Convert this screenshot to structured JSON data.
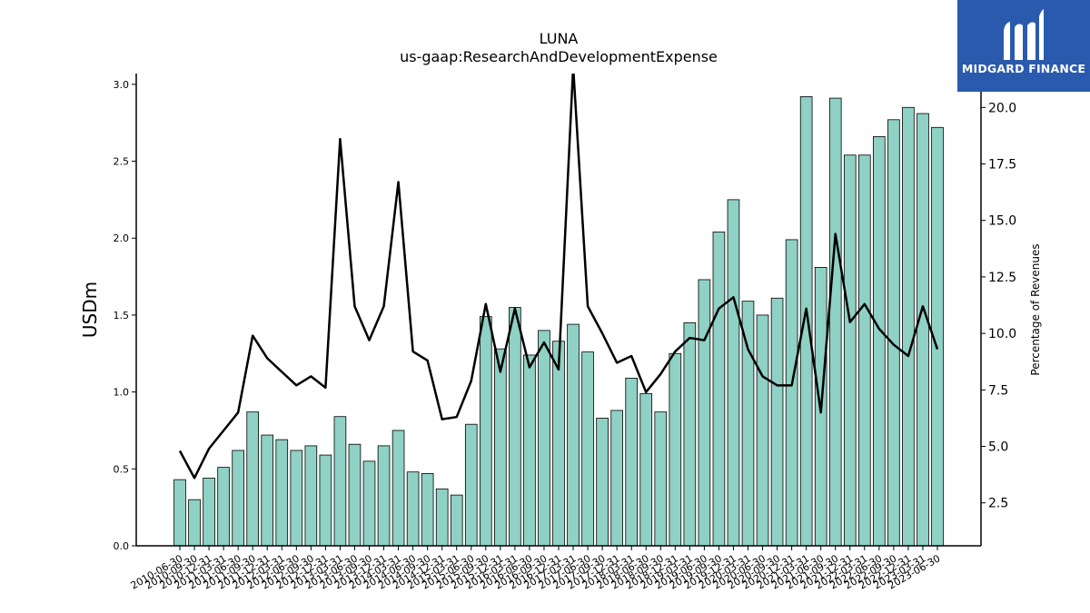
{
  "brand": {
    "name": "MIDGARD FINANCE",
    "logo_icon": "midgard-m-logo-icon",
    "background": "#2a5aad"
  },
  "chart_data": {
    "type": "bar",
    "title": "LUNA",
    "subtitle": "us-gaap:ResearchAndDevelopmentExpense",
    "ylabel": "USDm",
    "ylabel_right": "Percentage of Revenues",
    "ylim": [
      0,
      3.07
    ],
    "ylim_right": [
      0.6,
      21.5
    ],
    "yticks": [
      0.0,
      0.5,
      1.0,
      1.5,
      2.0,
      2.5,
      3.0
    ],
    "yticks_right": [
      2.5,
      5.0,
      7.5,
      10.0,
      12.5,
      15.0,
      17.5,
      20.0
    ],
    "bar_color": "#8fd1c4",
    "line_color": "#000000",
    "grid": false,
    "categories": [
      "2010-06-30",
      "2010-09-30",
      "2010-12-31",
      "2011-03-31",
      "2011-06-30",
      "2011-09-30",
      "2011-12-31",
      "2012-03-31",
      "2012-06-30",
      "2012-09-30",
      "2012-12-31",
      "2013-03-31",
      "2013-06-30",
      "2013-09-30",
      "2013-12-31",
      "2014-03-31",
      "2014-06-30",
      "2014-09-30",
      "2014-12-31",
      "2015-03-31",
      "2015-06-30",
      "2015-09-30",
      "2015-12-31",
      "2016-03-31",
      "2016-06-30",
      "2016-09-30",
      "2016-12-31",
      "2017-03-31",
      "2017-06-30",
      "2017-09-30",
      "2017-12-31",
      "2018-03-31",
      "2018-06-30",
      "2018-09-30",
      "2018-12-31",
      "2019-03-31",
      "2019-06-30",
      "2019-09-30",
      "2019-12-31",
      "2020-03-31",
      "2020-06-30",
      "2020-09-30",
      "2020-12-31",
      "2021-03-31",
      "2021-06-30",
      "2021-09-30",
      "2021-12-31",
      "2022-03-31",
      "2022-06-30",
      "2022-09-30",
      "2022-12-31",
      "2023-03-31",
      "2023-06-30"
    ],
    "series": [
      {
        "type": "bar",
        "axis": "left",
        "values": [
          0.43,
          0.3,
          0.44,
          0.51,
          0.62,
          0.87,
          0.72,
          0.69,
          0.62,
          0.65,
          0.59,
          0.84,
          0.66,
          0.55,
          0.65,
          0.75,
          0.48,
          0.47,
          0.37,
          0.33,
          0.79,
          1.49,
          1.28,
          1.55,
          1.24,
          1.4,
          1.33,
          1.44,
          1.26,
          0.83,
          0.88,
          1.09,
          0.99,
          0.87,
          1.25,
          1.45,
          1.73,
          2.04,
          2.25,
          1.59,
          1.5,
          1.61,
          1.99,
          2.92,
          1.81,
          2.91,
          2.54,
          2.54,
          2.66,
          2.77,
          2.85,
          2.81,
          2.72
        ]
      },
      {
        "type": "line",
        "axis": "right",
        "values": [
          4.8,
          3.6,
          4.9,
          5.7,
          6.5,
          9.9,
          8.9,
          8.3,
          7.7,
          8.1,
          7.6,
          18.6,
          11.2,
          9.7,
          11.2,
          16.7,
          9.2,
          8.8,
          6.2,
          6.3,
          7.9,
          11.3,
          8.3,
          11.1,
          8.5,
          9.6,
          8.4,
          21.8,
          11.2,
          10.0,
          8.7,
          9.0,
          7.4,
          8.2,
          9.2,
          9.8,
          9.7,
          11.1,
          11.6,
          9.3,
          8.1,
          7.7,
          7.7,
          11.1,
          6.5,
          14.4,
          10.5,
          11.3,
          10.2,
          9.5,
          9.0,
          11.2,
          9.3
        ]
      }
    ]
  }
}
